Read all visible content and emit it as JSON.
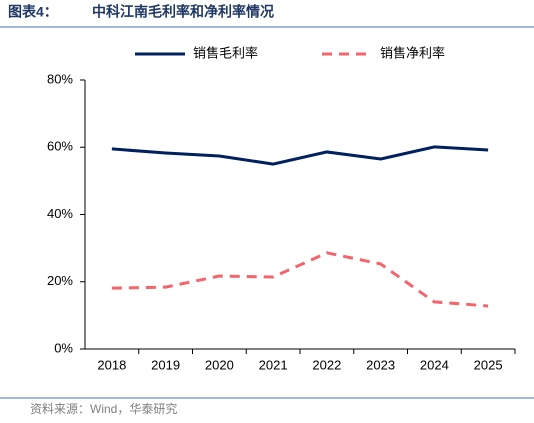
{
  "chart_data": {
    "type": "line",
    "figure_label": "图表4：",
    "title": "中科江南毛利率和净利率情况",
    "categories": [
      "2018",
      "2019",
      "2020",
      "2021",
      "2022",
      "2023",
      "2024",
      "2025"
    ],
    "series": [
      {
        "name": "销售毛利率",
        "color": "#002060",
        "dash": false,
        "values": [
          59.5,
          58.3,
          57.4,
          55.0,
          58.6,
          56.5,
          60.1,
          59.2
        ]
      },
      {
        "name": "销售净利率",
        "color": "#f4646b",
        "dash": true,
        "values": [
          18.1,
          18.4,
          21.7,
          21.4,
          28.6,
          25.3,
          14.0,
          12.8
        ]
      }
    ],
    "ylim": [
      0,
      80
    ],
    "yticks": [
      {
        "value": 0,
        "label": "0%"
      },
      {
        "value": 20,
        "label": "20%"
      },
      {
        "value": 40,
        "label": "40%"
      },
      {
        "value": 60,
        "label": "60%"
      },
      {
        "value": 80,
        "label": "80%"
      }
    ],
    "legend": "top",
    "source": "资料来源：Wind，华泰研究"
  }
}
